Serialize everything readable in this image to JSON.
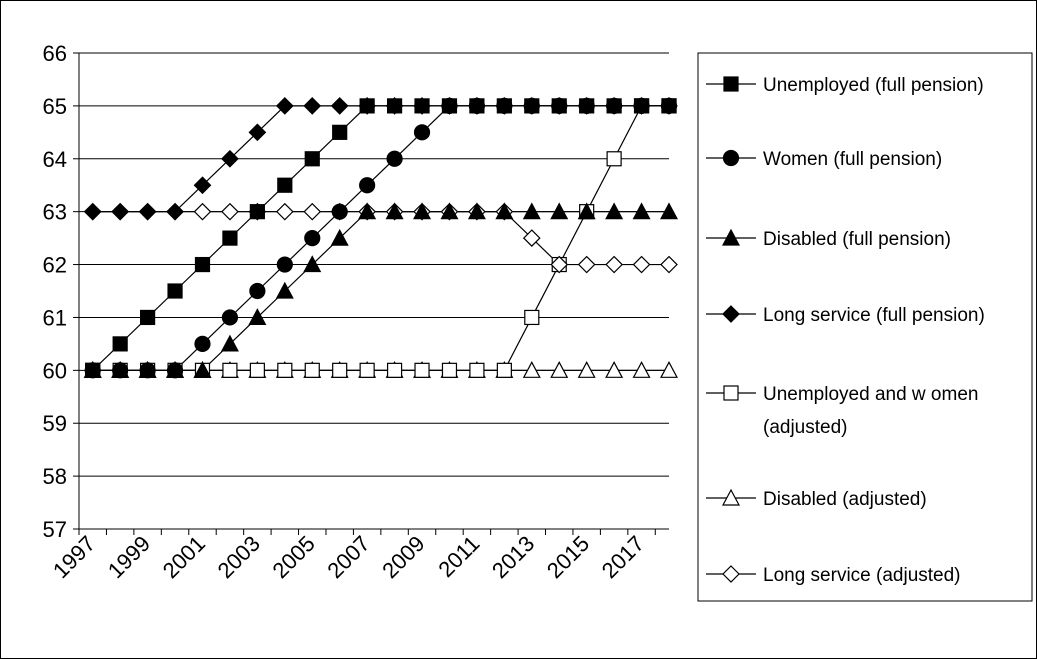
{
  "chart_data": {
    "type": "line",
    "x": [
      1997,
      1998,
      1999,
      2000,
      2001,
      2002,
      2003,
      2004,
      2005,
      2006,
      2007,
      2008,
      2009,
      2010,
      2011,
      2012,
      2013,
      2014,
      2015,
      2016,
      2017,
      2018
    ],
    "x_tick_labels": [
      "1997",
      "1999",
      "2001",
      "2003",
      "2005",
      "2007",
      "2009",
      "2011",
      "2013",
      "2015",
      "2017"
    ],
    "ylim": [
      57,
      66
    ],
    "y_ticks": [
      57,
      58,
      59,
      60,
      61,
      62,
      63,
      64,
      65,
      66
    ],
    "grid": true,
    "legend_position": "right",
    "title": "",
    "xlabel": "",
    "ylabel": "",
    "series": [
      {
        "name": "Unemployed (full pension)",
        "marker": "square-filled",
        "values": [
          60,
          60.5,
          61,
          61.5,
          62,
          62.5,
          63,
          63.5,
          64,
          64.5,
          65,
          65,
          65,
          65,
          65,
          65,
          65,
          65,
          65,
          65,
          65,
          65
        ]
      },
      {
        "name": "Women (full pension)",
        "marker": "circle-filled",
        "values": [
          60,
          60,
          60,
          60,
          60.5,
          61,
          61.5,
          62,
          62.5,
          63,
          63.5,
          64,
          64.5,
          65,
          65,
          65,
          65,
          65,
          65,
          65,
          65,
          65
        ]
      },
      {
        "name": "Disabled (full pension)",
        "marker": "triangle-filled",
        "values": [
          60,
          60,
          60,
          60,
          60,
          60.5,
          61,
          61.5,
          62,
          62.5,
          63,
          63,
          63,
          63,
          63,
          63,
          63,
          63,
          63,
          63,
          63,
          63
        ]
      },
      {
        "name": "Long service (full pension)",
        "marker": "diamond-filled",
        "values": [
          63,
          63,
          63,
          63,
          63.5,
          64,
          64.5,
          65,
          65,
          65,
          65,
          65,
          65,
          65,
          65,
          65,
          65,
          65,
          65,
          65,
          65,
          65
        ]
      },
      {
        "name": "Unemployed and w omen (adjusted)",
        "legend_lines": [
          "Unemployed and w omen",
          "(adjusted)"
        ],
        "marker": "square-open",
        "values": [
          60,
          60,
          60,
          60,
          60,
          60,
          60,
          60,
          60,
          60,
          60,
          60,
          60,
          60,
          60,
          60,
          61,
          62,
          63,
          64,
          65,
          65
        ]
      },
      {
        "name": "Disabled (adjusted)",
        "marker": "triangle-open",
        "values": [
          60,
          60,
          60,
          60,
          60,
          60,
          60,
          60,
          60,
          60,
          60,
          60,
          60,
          60,
          60,
          60,
          60,
          60,
          60,
          60,
          60,
          60
        ]
      },
      {
        "name": "Long service (adjusted)",
        "marker": "diamond-open",
        "values": [
          63,
          63,
          63,
          63,
          63,
          63,
          63,
          63,
          63,
          63,
          63,
          63,
          63,
          63,
          63,
          63,
          62.5,
          62,
          62,
          62,
          62,
          62
        ]
      }
    ]
  }
}
